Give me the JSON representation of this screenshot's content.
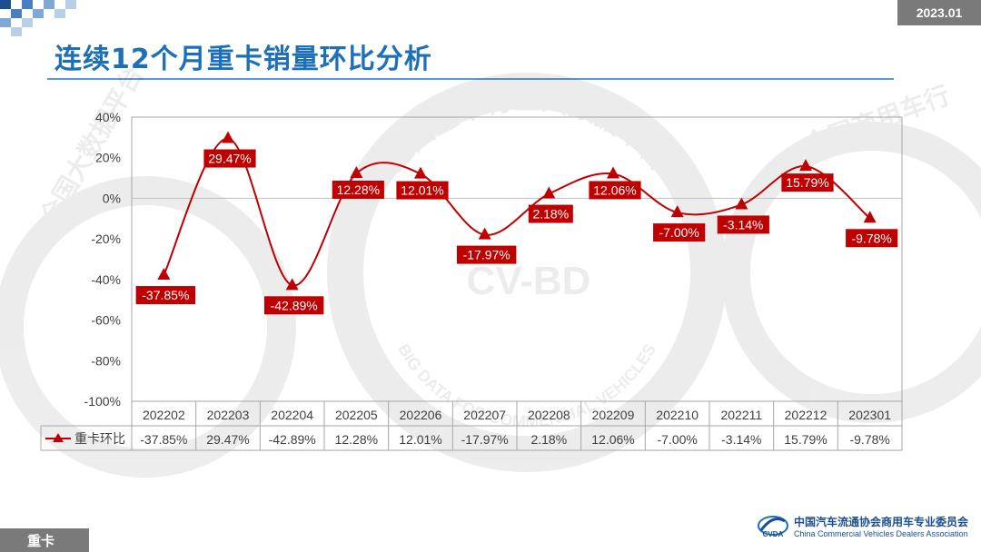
{
  "header": {
    "date_badge": "2023.01",
    "title": "连续12个月重卡销量环比分析"
  },
  "watermark": {
    "center_text": "CV-BD",
    "ring_text": "全国重卡行业大数据平台",
    "ring_text_en": "BIG DATA FOR COMMERCIAL VEHICLES",
    "side_text": "全国大数据平台",
    "side_text_2": "全国商用车行"
  },
  "chart_data": {
    "type": "line",
    "categories": [
      "202202",
      "202203",
      "202204",
      "202205",
      "202206",
      "202207",
      "202208",
      "202209",
      "202210",
      "202211",
      "202212",
      "202301"
    ],
    "series": [
      {
        "name": "重卡环比",
        "values": [
          -37.85,
          29.47,
          -42.89,
          12.28,
          12.01,
          -17.97,
          2.18,
          12.06,
          -7.0,
          -3.14,
          15.79,
          -9.78
        ],
        "labels": [
          "-37.85%",
          "29.47%",
          "-42.89%",
          "12.28%",
          "12.01%",
          "-17.97%",
          "2.18%",
          "12.06%",
          "-7.00%",
          "-3.14%",
          "15.79%",
          "-9.78%"
        ],
        "color": "#c00000",
        "marker": "triangle",
        "smooth": true
      }
    ],
    "ylim": [
      -100,
      40
    ],
    "yticks": [
      40,
      20,
      0,
      -20,
      -40,
      -60,
      -80,
      -100
    ],
    "ytick_labels": [
      "40%",
      "20%",
      "0%",
      "-20%",
      "-40%",
      "-60%",
      "-80%",
      "-100%"
    ],
    "data_table": true,
    "grid": false,
    "zero_line": true,
    "label_style": "white text on red box"
  },
  "footer": {
    "tag": "重卡",
    "org_cn": "中国汽车流通协会商用车专业委员会",
    "org_en": "China Commercial Vehicles Dealers Association",
    "org_logo_text": "CVDA"
  },
  "colors": {
    "title": "#1d6fb8",
    "series": "#c00000",
    "badge": "#7a7a7a",
    "rule": "#5b9bd5"
  }
}
